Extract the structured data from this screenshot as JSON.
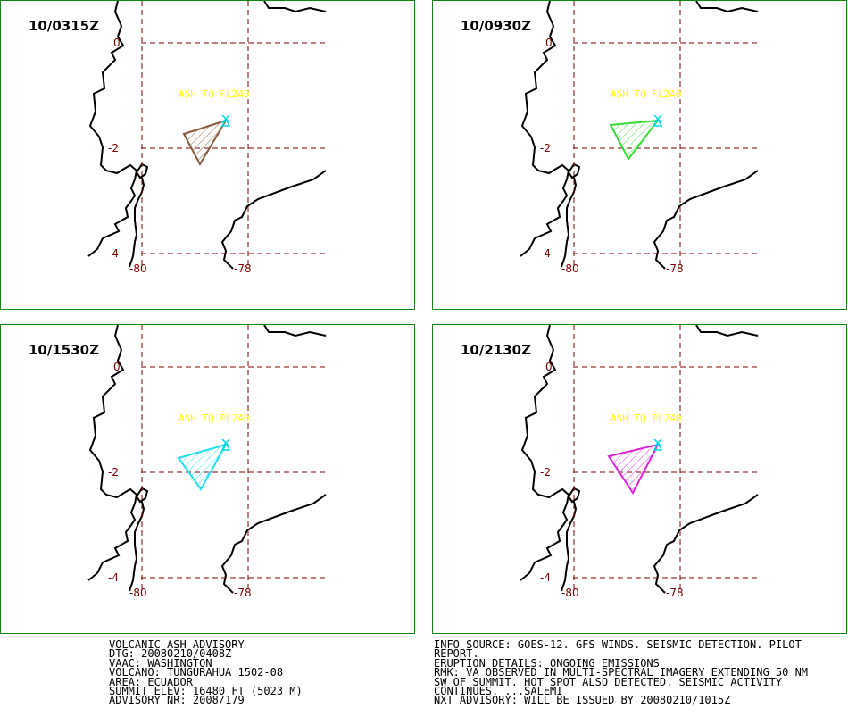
{
  "panels": [
    {
      "time": "10/0315Z",
      "ash_label": "ASH TO FL240",
      "color": "#8B5A3C"
    },
    {
      "time": "10/0930Z",
      "ash_label": "ASH TO FL240",
      "color": "#33DD33"
    },
    {
      "time": "10/1530Z",
      "ash_label": "ASH TO FL240",
      "color": "#22DDEE"
    },
    {
      "time": "10/2130Z",
      "ash_label": "ASH TO FL240",
      "color": "#DD22DD"
    }
  ],
  "grid": {
    "lat_labels": [
      "0",
      "-2",
      "-4"
    ],
    "lon_labels": [
      "-80",
      "-78"
    ]
  },
  "colors": {
    "border": "#118811",
    "grid": "#800000",
    "coast": "#000000",
    "volcano_marker": "#00D8E8",
    "ash_text": "#FFFF00"
  },
  "volcano_marker_icon": "cross-triangle-icon",
  "advisory_left": [
    "VOLCANIC ASH ADVISORY",
    "DTG: 20080210/0408Z",
    "VAAC: WASHINGTON",
    "VOLCANO: TUNGURAHUA 1502-08",
    "AREA: ECUADOR",
    "SUMMIT ELEV: 16480 FT (5023 M)",
    "ADVISORY NR: 2008/179"
  ],
  "advisory_right": [
    "INFO SOURCE: GOES-12. GFS WINDS. SEISMIC DETECTION. PILOT",
    "REPORT.",
    "ERUPTION DETAILS: ONGOING EMISSIONS",
    "RMK: VA OBSERVED IN MULTI-SPECTRAL IMAGERY EXTENDING 50 NM",
    "SW OF SUMMIT. HOT SPOT ALSO DETECTED. SEISMIC ACTIVITY",
    "CONTINUES. ...SALEMI",
    "NXT ADVISORY: WILL BE ISSUED BY 20080210/1015Z"
  ]
}
